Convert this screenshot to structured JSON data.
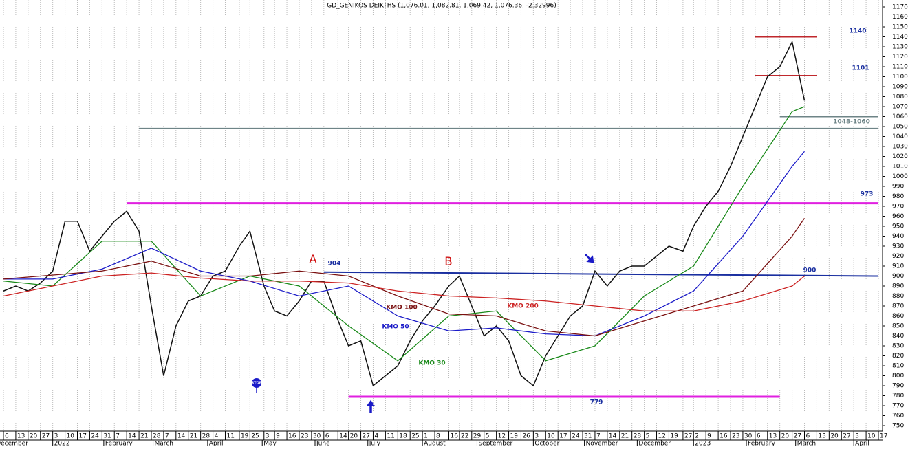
{
  "chart_data": {
    "type": "line",
    "title": "GD_GENIKOS DEIKTHS (1,076.01, 1,082.81, 1,069.42, 1,076.36, -2.32996)",
    "xlim": [
      "2021-12-06",
      "2023-04-17"
    ],
    "ylim": [
      750,
      1170
    ],
    "yticks": [
      750,
      760,
      770,
      780,
      790,
      800,
      810,
      820,
      830,
      840,
      850,
      860,
      870,
      880,
      890,
      900,
      910,
      920,
      930,
      940,
      950,
      960,
      970,
      980,
      990,
      1000,
      1010,
      1020,
      1030,
      1040,
      1050,
      1060,
      1070,
      1080,
      1090,
      1100,
      1110,
      1120,
      1130,
      1140,
      1150,
      1160,
      1170
    ],
    "xticks": [
      {
        "value": "2021-12-06",
        "label": "6"
      },
      {
        "value": "2021-12-13",
        "label": "13"
      },
      {
        "value": "2021-12-20",
        "label": "20"
      },
      {
        "value": "2021-12-27",
        "label": "27"
      },
      {
        "value": "2022-01-03",
        "label": "3"
      },
      {
        "value": "2022-01-10",
        "label": "10"
      },
      {
        "value": "2022-01-17",
        "label": "17"
      },
      {
        "value": "2022-01-24",
        "label": "24"
      },
      {
        "value": "2022-01-31",
        "label": "31"
      },
      {
        "value": "2022-02-07",
        "label": "7"
      },
      {
        "value": "2022-02-14",
        "label": "14"
      },
      {
        "value": "2022-02-21",
        "label": "21"
      },
      {
        "value": "2022-02-28",
        "label": "28"
      },
      {
        "value": "2022-03-07",
        "label": "7"
      },
      {
        "value": "2022-03-14",
        "label": "14"
      },
      {
        "value": "2022-03-21",
        "label": "21"
      },
      {
        "value": "2022-03-28",
        "label": "28"
      },
      {
        "value": "2022-04-04",
        "label": "4"
      },
      {
        "value": "2022-04-11",
        "label": "11"
      },
      {
        "value": "2022-04-19",
        "label": "19"
      },
      {
        "value": "2022-04-25",
        "label": "25"
      },
      {
        "value": "2022-05-03",
        "label": "3"
      },
      {
        "value": "2022-05-09",
        "label": "9"
      },
      {
        "value": "2022-05-16",
        "label": "16"
      },
      {
        "value": "2022-05-23",
        "label": "23"
      },
      {
        "value": "2022-05-30",
        "label": "30"
      },
      {
        "value": "2022-06-06",
        "label": "6"
      },
      {
        "value": "2022-06-14",
        "label": "14"
      },
      {
        "value": "2022-06-20",
        "label": "20"
      },
      {
        "value": "2022-06-27",
        "label": "27"
      },
      {
        "value": "2022-07-04",
        "label": "4"
      },
      {
        "value": "2022-07-11",
        "label": "11"
      },
      {
        "value": "2022-07-18",
        "label": "18"
      },
      {
        "value": "2022-07-25",
        "label": "25"
      },
      {
        "value": "2022-08-01",
        "label": "1"
      },
      {
        "value": "2022-08-08",
        "label": "8"
      },
      {
        "value": "2022-08-16",
        "label": "16"
      },
      {
        "value": "2022-08-22",
        "label": "22"
      },
      {
        "value": "2022-08-29",
        "label": "29"
      },
      {
        "value": "2022-09-05",
        "label": "5"
      },
      {
        "value": "2022-09-12",
        "label": "12"
      },
      {
        "value": "2022-09-19",
        "label": "19"
      },
      {
        "value": "2022-09-26",
        "label": "26"
      },
      {
        "value": "2022-10-03",
        "label": "3"
      },
      {
        "value": "2022-10-10",
        "label": "10"
      },
      {
        "value": "2022-10-17",
        "label": "17"
      },
      {
        "value": "2022-10-24",
        "label": "24"
      },
      {
        "value": "2022-10-31",
        "label": "31"
      },
      {
        "value": "2022-11-07",
        "label": "7"
      },
      {
        "value": "2022-11-14",
        "label": "14"
      },
      {
        "value": "2022-11-21",
        "label": "21"
      },
      {
        "value": "2022-11-28",
        "label": "28"
      },
      {
        "value": "2022-12-05",
        "label": "5"
      },
      {
        "value": "2022-12-12",
        "label": "12"
      },
      {
        "value": "2022-12-19",
        "label": "19"
      },
      {
        "value": "2022-12-27",
        "label": "27"
      },
      {
        "value": "2023-01-02",
        "label": "2"
      },
      {
        "value": "2023-01-09",
        "label": "9"
      },
      {
        "value": "2023-01-16",
        "label": "16"
      },
      {
        "value": "2023-01-23",
        "label": "23"
      },
      {
        "value": "2023-01-30",
        "label": "30"
      },
      {
        "value": "2023-02-06",
        "label": "6"
      },
      {
        "value": "2023-02-13",
        "label": "13"
      },
      {
        "value": "2023-02-20",
        "label": "20"
      },
      {
        "value": "2023-02-27",
        "label": "27"
      },
      {
        "value": "2023-03-06",
        "label": "6"
      },
      {
        "value": "2023-03-13",
        "label": "13"
      },
      {
        "value": "2023-03-20",
        "label": "20"
      },
      {
        "value": "2023-03-27",
        "label": "27"
      },
      {
        "value": "2023-04-03",
        "label": "3"
      },
      {
        "value": "2023-04-10",
        "label": "10"
      },
      {
        "value": "2023-04-17",
        "label": "17"
      }
    ],
    "month_ticks": [
      {
        "value": "2021-12-01",
        "label": "December"
      },
      {
        "value": "2022-01-03",
        "label": "2022"
      },
      {
        "value": "2022-02-01",
        "label": "February"
      },
      {
        "value": "2022-03-01",
        "label": "March"
      },
      {
        "value": "2022-04-01",
        "label": "April"
      },
      {
        "value": "2022-05-02",
        "label": "May"
      },
      {
        "value": "2022-06-01",
        "label": "June"
      },
      {
        "value": "2022-07-01",
        "label": "July"
      },
      {
        "value": "2022-08-01",
        "label": "August"
      },
      {
        "value": "2022-09-01",
        "label": "September"
      },
      {
        "value": "2022-10-03",
        "label": "October"
      },
      {
        "value": "2022-11-01",
        "label": "November"
      },
      {
        "value": "2022-12-01",
        "label": "December"
      },
      {
        "value": "2023-01-02",
        "label": "2023"
      },
      {
        "value": "2023-02-01",
        "label": "February"
      },
      {
        "value": "2023-03-01",
        "label": "March"
      },
      {
        "value": "2023-04-03",
        "label": "April"
      }
    ],
    "series": [
      {
        "color": "#111111",
        "x": [
          "2021-12-06",
          "2021-12-13",
          "2021-12-20",
          "2021-12-27",
          "2022-01-03",
          "2022-01-10",
          "2022-01-17",
          "2022-01-24",
          "2022-01-31",
          "2022-02-07",
          "2022-02-14",
          "2022-02-21",
          "2022-02-28",
          "2022-03-07",
          "2022-03-14",
          "2022-03-21",
          "2022-03-28",
          "2022-04-04",
          "2022-04-11",
          "2022-04-19",
          "2022-04-25",
          "2022-05-03",
          "2022-05-09",
          "2022-05-16",
          "2022-05-23",
          "2022-05-30",
          "2022-06-06",
          "2022-06-13",
          "2022-06-20",
          "2022-06-27",
          "2022-07-04",
          "2022-07-11",
          "2022-07-18",
          "2022-07-25",
          "2022-08-01",
          "2022-08-08",
          "2022-08-16",
          "2022-08-22",
          "2022-08-29",
          "2022-09-05",
          "2022-09-12",
          "2022-09-19",
          "2022-09-26",
          "2022-10-03",
          "2022-10-10",
          "2022-10-17",
          "2022-10-24",
          "2022-10-31",
          "2022-11-07",
          "2022-11-14",
          "2022-11-21",
          "2022-11-28",
          "2022-12-05",
          "2022-12-12",
          "2022-12-19",
          "2022-12-27",
          "2023-01-02",
          "2023-01-09",
          "2023-01-16",
          "2023-01-23",
          "2023-01-30",
          "2023-02-06",
          "2023-02-13",
          "2023-02-20",
          "2023-02-27",
          "2023-03-06"
        ],
        "values": [
          885,
          890,
          885,
          893,
          905,
          955,
          955,
          925,
          940,
          955,
          965,
          945,
          870,
          800,
          850,
          875,
          880,
          900,
          905,
          930,
          945,
          890,
          865,
          860,
          875,
          895,
          895,
          860,
          830,
          835,
          790,
          800,
          810,
          835,
          855,
          870,
          890,
          900,
          870,
          840,
          850,
          835,
          800,
          790,
          820,
          840,
          860,
          870,
          905,
          890,
          905,
          910,
          910,
          920,
          930,
          925,
          950,
          970,
          985,
          1010,
          1040,
          1070,
          1100,
          1110,
          1135,
          1076
        ]
      },
      {
        "name": "KMO 30",
        "color": "#1a8a1a",
        "x": [
          "2021-12-06",
          "2022-01-03",
          "2022-01-31",
          "2022-02-28",
          "2022-03-28",
          "2022-04-25",
          "2022-05-23",
          "2022-06-20",
          "2022-07-18",
          "2022-08-16",
          "2022-09-12",
          "2022-10-10",
          "2022-11-07",
          "2022-12-05",
          "2023-01-02",
          "2023-01-30",
          "2023-02-27",
          "2023-03-06"
        ],
        "values": [
          895,
          890,
          935,
          935,
          880,
          900,
          890,
          850,
          815,
          860,
          865,
          815,
          830,
          880,
          910,
          990,
          1065,
          1070
        ]
      },
      {
        "name": "KMO 50",
        "color": "#1b1bc8",
        "x": [
          "2021-12-06",
          "2022-01-03",
          "2022-01-31",
          "2022-02-28",
          "2022-03-28",
          "2022-04-25",
          "2022-05-23",
          "2022-06-20",
          "2022-07-18",
          "2022-08-16",
          "2022-09-12",
          "2022-10-10",
          "2022-11-07",
          "2022-12-05",
          "2023-01-02",
          "2023-01-30",
          "2023-02-27",
          "2023-03-06"
        ],
        "values": [
          897,
          897,
          907,
          928,
          905,
          895,
          880,
          890,
          860,
          845,
          848,
          842,
          840,
          860,
          885,
          940,
          1010,
          1025
        ]
      },
      {
        "name": "KMO 100",
        "color": "#7a1010",
        "x": [
          "2021-12-06",
          "2022-01-31",
          "2022-02-28",
          "2022-03-28",
          "2022-04-25",
          "2022-05-23",
          "2022-06-20",
          "2022-07-18",
          "2022-08-16",
          "2022-09-12",
          "2022-10-10",
          "2022-11-07",
          "2022-12-05",
          "2023-01-02",
          "2023-01-30",
          "2023-02-27",
          "2023-03-06"
        ],
        "values": [
          897,
          905,
          915,
          900,
          900,
          905,
          900,
          880,
          862,
          860,
          845,
          840,
          855,
          870,
          885,
          940,
          958
        ]
      },
      {
        "name": "KMO 200",
        "color": "#cc2222",
        "x": [
          "2021-12-06",
          "2022-01-31",
          "2022-02-28",
          "2022-03-28",
          "2022-04-25",
          "2022-05-23",
          "2022-06-20",
          "2022-07-18",
          "2022-08-16",
          "2022-09-12",
          "2022-10-10",
          "2022-11-07",
          "2022-12-05",
          "2023-01-02",
          "2023-01-30",
          "2023-02-27",
          "2023-03-06"
        ],
        "values": [
          880,
          900,
          903,
          898,
          895,
          895,
          893,
          885,
          880,
          878,
          875,
          870,
          865,
          865,
          875,
          890,
          900
        ]
      }
    ],
    "levels": [
      {
        "value": 1140,
        "from": "2023-02-06",
        "to": "2023-03-13",
        "color": "#c0282d"
      },
      {
        "value": 1101,
        "from": "2023-02-06",
        "to": "2023-03-13",
        "color": "#c0282d"
      },
      {
        "value": 973,
        "from": "2022-02-14",
        "to": "2023-04-17",
        "color": "#e020e0"
      },
      {
        "value": 779,
        "from": "2022-06-20",
        "to": "2023-02-20",
        "color": "#e020e0"
      }
    ],
    "zone": {
      "label": "1048-1060",
      "values": [
        1048,
        1060
      ],
      "from": [
        "2022-02-21",
        "2023-02-20"
      ],
      "to": "2023-04-17",
      "color": "#6e8487"
    },
    "trend": {
      "x": [
        "2022-06-06",
        "2023-04-17"
      ],
      "values": [
        904,
        900
      ],
      "color": "#1a2fa0"
    },
    "annotations": [
      "A",
      "B"
    ],
    "stop_sign": "STOP"
  }
}
